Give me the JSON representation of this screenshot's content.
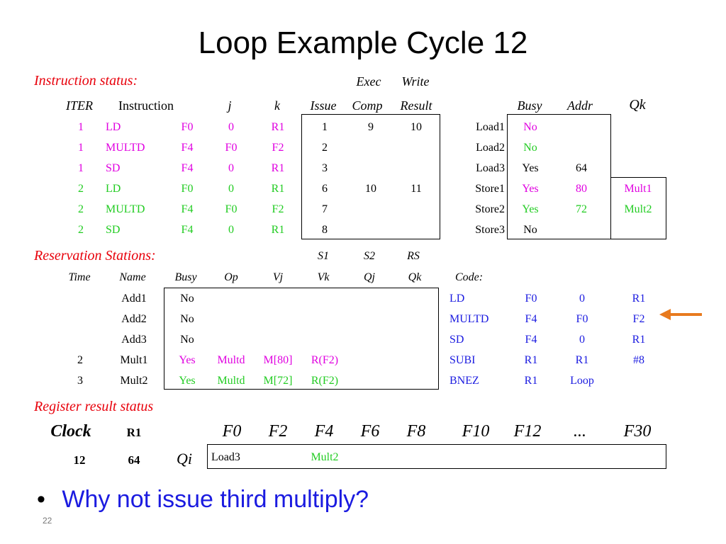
{
  "title": "Loop Example Cycle 12",
  "colors": {
    "red": "#e8000b",
    "magenta": "#e000e0",
    "green": "#22cc22",
    "blue": "#1b1be0",
    "black": "#000000",
    "orange": "#e87a1e"
  },
  "instruction_status": {
    "label": "Instruction status:",
    "super_headers": [
      "Exec",
      "Write"
    ],
    "headers": [
      "ITER",
      "Instruction",
      "j",
      "k",
      "Issue",
      "Comp",
      "Result"
    ],
    "rows": [
      {
        "iter": "1",
        "op": "LD",
        "dst": "F0",
        "j": "0",
        "k": "R1",
        "issue": "1",
        "comp": "9",
        "result": "10",
        "color": "#e000e0"
      },
      {
        "iter": "1",
        "op": "MULTD",
        "dst": "F4",
        "j": "F0",
        "k": "F2",
        "issue": "2",
        "comp": "",
        "result": "",
        "color": "#e000e0"
      },
      {
        "iter": "1",
        "op": "SD",
        "dst": "F4",
        "j": "0",
        "k": "R1",
        "issue": "3",
        "comp": "",
        "result": "",
        "color": "#e000e0"
      },
      {
        "iter": "2",
        "op": "LD",
        "dst": "F0",
        "j": "0",
        "k": "R1",
        "issue": "6",
        "comp": "10",
        "result": "11",
        "color": "#22cc22"
      },
      {
        "iter": "2",
        "op": "MULTD",
        "dst": "F4",
        "j": "F0",
        "k": "F2",
        "issue": "7",
        "comp": "",
        "result": "",
        "color": "#22cc22"
      },
      {
        "iter": "2",
        "op": "SD",
        "dst": "F4",
        "j": "0",
        "k": "R1",
        "issue": "8",
        "comp": "",
        "result": "",
        "color": "#22cc22"
      }
    ]
  },
  "load_store": {
    "headers": [
      "Busy",
      "Addr",
      "Qk"
    ],
    "rows": [
      {
        "name": "Load1",
        "busy": "No",
        "addr": "",
        "qk": "",
        "color": "#e000e0"
      },
      {
        "name": "Load2",
        "busy": "No",
        "addr": "",
        "qk": "",
        "color": "#22cc22"
      },
      {
        "name": "Load3",
        "busy": "Yes",
        "addr": "64",
        "qk": "",
        "color": "#000000"
      },
      {
        "name": "Store1",
        "busy": "Yes",
        "addr": "80",
        "qk": "Mult1",
        "color": "#e000e0"
      },
      {
        "name": "Store2",
        "busy": "Yes",
        "addr": "72",
        "qk": "Mult2",
        "color": "#22cc22"
      },
      {
        "name": "Store3",
        "busy": "No",
        "addr": "",
        "qk": "",
        "color": "#000000"
      }
    ]
  },
  "reservation_stations": {
    "label": "Reservation Stations:",
    "super_headers": [
      "S1",
      "S2",
      "RS"
    ],
    "headers": [
      "Time",
      "Name",
      "Busy",
      "Op",
      "Vj",
      "Vk",
      "Qj",
      "Qk"
    ],
    "rows": [
      {
        "time": "",
        "name": "Add1",
        "busy": "No",
        "op": "",
        "vj": "",
        "vk": "",
        "color": "#000000"
      },
      {
        "time": "",
        "name": "Add2",
        "busy": "No",
        "op": "",
        "vj": "",
        "vk": "",
        "color": "#000000"
      },
      {
        "time": "",
        "name": "Add3",
        "busy": "No",
        "op": "",
        "vj": "",
        "vk": "",
        "color": "#000000"
      },
      {
        "time": "2",
        "name": "Mult1",
        "busy": "Yes",
        "op": "Multd",
        "vj": "M[80]",
        "vk": "R(F2)",
        "color": "#e000e0"
      },
      {
        "time": "3",
        "name": "Mult2",
        "busy": "Yes",
        "op": "Multd",
        "vj": "M[72]",
        "vk": "R(F2)",
        "color": "#22cc22"
      }
    ]
  },
  "code": {
    "label": "Code:",
    "rows": [
      [
        "LD",
        "F0",
        "0",
        "R1"
      ],
      [
        "MULTD",
        "F4",
        "F0",
        "F2"
      ],
      [
        "SD",
        "F4",
        "0",
        "R1"
      ],
      [
        "SUBI",
        "R1",
        "R1",
        "#8"
      ],
      [
        "BNEZ",
        "R1",
        "Loop",
        ""
      ]
    ]
  },
  "register_status": {
    "label": "Register result status",
    "clock_label": "Clock",
    "r1_label": "R1",
    "qi_label": "Qi",
    "clock": "12",
    "r1": "64",
    "registers": [
      "F0",
      "F2",
      "F4",
      "F6",
      "F8",
      "F10",
      "F12",
      "...",
      "F30"
    ],
    "qi": [
      "Load3",
      "",
      "Mult2",
      "",
      "",
      "",
      "",
      "",
      ""
    ]
  },
  "bullet": "Why not issue third multiply?",
  "page_number": "22"
}
